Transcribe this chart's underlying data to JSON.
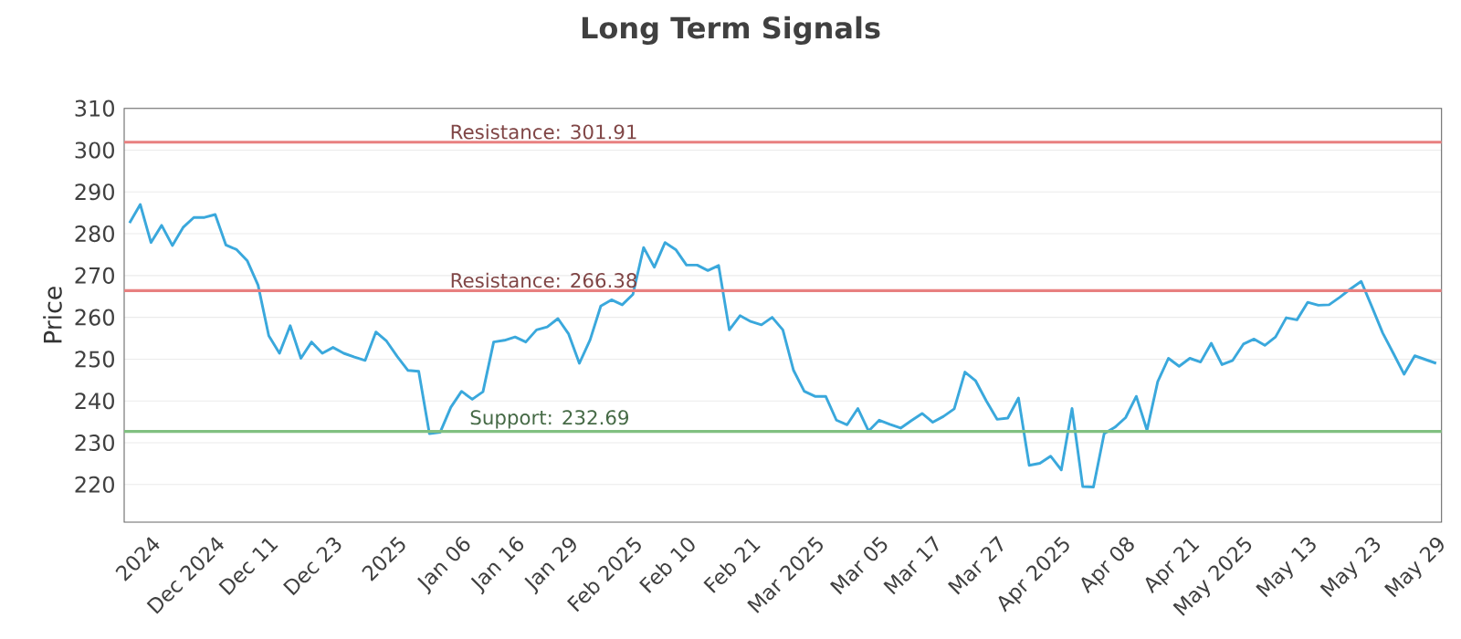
{
  "chart_data": {
    "type": "line",
    "title": "Long Term Signals",
    "ylabel": "Price",
    "categories": [
      null,
      null,
      "2024",
      null,
      null,
      null,
      null,
      null,
      "Dec 2024",
      null,
      null,
      null,
      null,
      "Dec 11",
      null,
      null,
      null,
      null,
      null,
      "Dec 23",
      null,
      null,
      null,
      null,
      null,
      "2025",
      null,
      null,
      null,
      null,
      null,
      "Jan 06",
      null,
      null,
      null,
      null,
      "Jan 16",
      null,
      null,
      null,
      null,
      "Jan 29",
      null,
      null,
      null,
      null,
      null,
      "Feb 2025",
      null,
      null,
      null,
      null,
      "Feb 10",
      null,
      null,
      null,
      null,
      null,
      "Feb 21",
      null,
      null,
      null,
      null,
      null,
      "Mar 2025",
      null,
      null,
      null,
      null,
      null,
      "Mar 05",
      null,
      null,
      null,
      null,
      "Mar 17",
      null,
      null,
      null,
      null,
      null,
      "Mar 27",
      null,
      null,
      null,
      null,
      null,
      "Apr 2025",
      null,
      null,
      null,
      null,
      null,
      "Apr 08",
      null,
      null,
      null,
      null,
      null,
      "Apr 21",
      null,
      null,
      null,
      null,
      "May 2025",
      null,
      null,
      null,
      null,
      null,
      "May 13",
      null,
      null,
      null,
      null,
      null,
      "May 23",
      null,
      null,
      null,
      null,
      null,
      "May 29"
    ],
    "series": [
      {
        "color": "#3aa8dc",
        "values": [
          282.6,
          287,
          277.9,
          282,
          277.2,
          281.5,
          283.9,
          283.9,
          284.6,
          277.3,
          276.2,
          273.5,
          267.7,
          255.6,
          251.4,
          258,
          250.2,
          254.1,
          251.4,
          252.8,
          251.4,
          250.5,
          249.7,
          256.5,
          254.3,
          250.6,
          247.3,
          247.1,
          232.2,
          232.5,
          238.5,
          242.3,
          240.4,
          242.2,
          254.1,
          254.5,
          255.3,
          254.1,
          257,
          257.7,
          259.7,
          256,
          249,
          254.6,
          262.7,
          264.2,
          263,
          265.5,
          276.7,
          272,
          277.9,
          276.2,
          272.5,
          272.5,
          271.2,
          272.4,
          257,
          260.4,
          259,
          258.2,
          260,
          257,
          247.3,
          242.3,
          241.1,
          241.1,
          235.4,
          234.3,
          238.2,
          232.8,
          235.4,
          234.4,
          233.5,
          235.3,
          237,
          234.9,
          236.3,
          238.1,
          246.9,
          244.8,
          240,
          235.6,
          235.9,
          240.7,
          224.6,
          225.1,
          226.8,
          223.5,
          238.2,
          219.5,
          219.4,
          232.2,
          233.7,
          236,
          241.1,
          233,
          244.6,
          250.2,
          248.3,
          250.2,
          249.3,
          253.8,
          248.7,
          249.7,
          253.6,
          254.8,
          253.3,
          255.3,
          259.9,
          259.4,
          263.6,
          262.9,
          263,
          264.8,
          266.8,
          268.6,
          262.5,
          256.3,
          251.4,
          246.4,
          250.8,
          249.9,
          249
        ]
      }
    ],
    "ylim": [
      211,
      310
    ],
    "yticks": [
      220,
      230,
      240,
      250,
      260,
      270,
      280,
      290,
      300,
      310
    ],
    "grid": "y",
    "marker": "none",
    "line_style": "solid",
    "ref_lines": [
      {
        "axis": "y",
        "value": 301.91,
        "label": "Resistance: 301.91",
        "color": "#e88080"
      },
      {
        "axis": "y",
        "value": 266.38,
        "label": "Resistance: 266.38",
        "color": "#e88080"
      },
      {
        "axis": "y",
        "value": 232.69,
        "label": "Support: 232.69",
        "color": "#80c080"
      }
    ]
  }
}
